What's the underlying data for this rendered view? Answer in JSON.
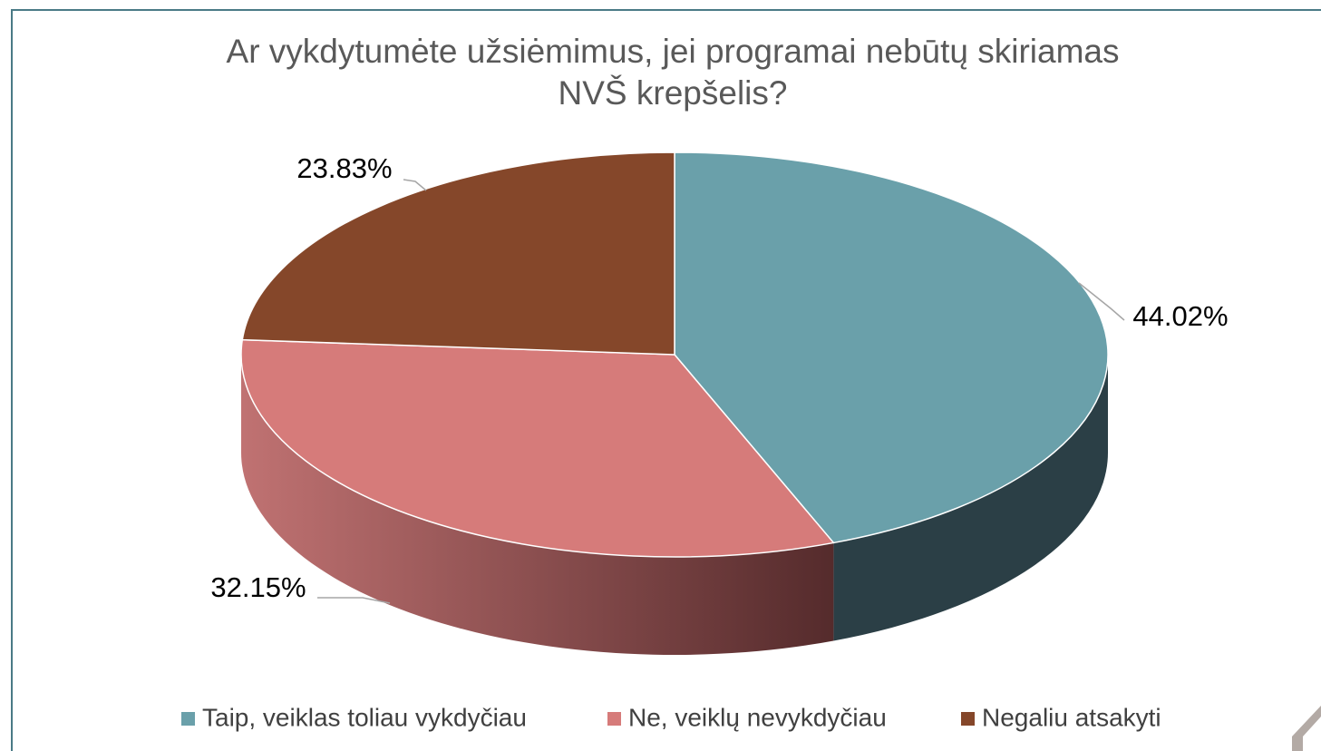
{
  "chart_data": {
    "type": "pie",
    "title": "Ar vykdytumėte užsiėmimus, jei programai nebūtų skiriamas\nNVŠ krepšelis?",
    "categories": [
      "Taip, veiklas toliau vykdyčiau",
      "Ne, veiklų nevykdyčiau",
      "Negaliu atsakyti"
    ],
    "values": [
      44.02,
      32.15,
      23.83
    ],
    "value_labels": [
      "44.02%",
      "32.15%",
      "23.83%"
    ],
    "colors": [
      "#6aa0aa",
      "#d67b7a",
      "#85472a"
    ],
    "legend": "bottom"
  }
}
